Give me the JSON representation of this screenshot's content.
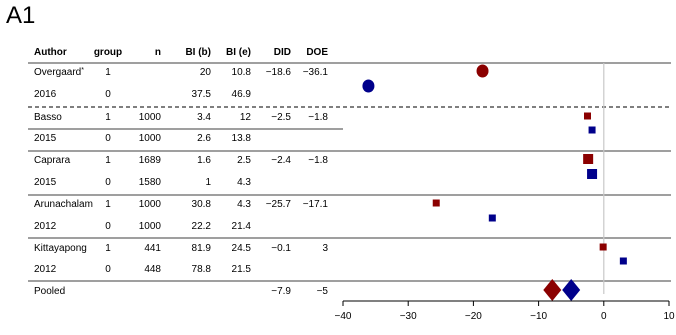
{
  "panel_label": "A1",
  "colors": {
    "red": "#8b0000",
    "blue": "#00008b",
    "rule": "#666666",
    "zero_line": "#c8c8c8"
  },
  "chart_data": {
    "type": "forest-plot",
    "columns": [
      "Author",
      "group",
      "n",
      "BI (b)",
      "BI (e)",
      "DID",
      "DOE"
    ],
    "rows": [
      {
        "author": "Overgaard",
        "author_mark": "*",
        "group": "1",
        "n": "",
        "bi_b": "20",
        "bi_e": "10.8",
        "did": "−18.6",
        "doe": "−36.1"
      },
      {
        "author": "2016",
        "author_mark": "",
        "group": "0",
        "n": "",
        "bi_b": "37.5",
        "bi_e": "46.9",
        "did": "",
        "doe": ""
      },
      {
        "author": "Basso",
        "author_mark": "",
        "group": "1",
        "n": "1000",
        "bi_b": "3.4",
        "bi_e": "12",
        "did": "−2.5",
        "doe": "−1.8"
      },
      {
        "author": "2015",
        "author_mark": "",
        "group": "0",
        "n": "1000",
        "bi_b": "2.6",
        "bi_e": "13.8",
        "did": "",
        "doe": ""
      },
      {
        "author": "Caprara",
        "author_mark": "",
        "group": "1",
        "n": "1689",
        "bi_b": "1.6",
        "bi_e": "2.5",
        "did": "−2.4",
        "doe": "−1.8"
      },
      {
        "author": "2015",
        "author_mark": "",
        "group": "0",
        "n": "1580",
        "bi_b": "1",
        "bi_e": "4.3",
        "did": "",
        "doe": ""
      },
      {
        "author": "Arunachalam",
        "author_mark": "",
        "group": "1",
        "n": "1000",
        "bi_b": "30.8",
        "bi_e": "4.3",
        "did": "−25.7",
        "doe": "−17.1"
      },
      {
        "author": "2012",
        "author_mark": "",
        "group": "0",
        "n": "1000",
        "bi_b": "22.2",
        "bi_e": "21.4",
        "did": "",
        "doe": ""
      },
      {
        "author": "Kittayapong",
        "author_mark": "",
        "group": "1",
        "n": "441",
        "bi_b": "81.9",
        "bi_e": "24.5",
        "did": "−0.1",
        "doe": "3"
      },
      {
        "author": "2012",
        "author_mark": "",
        "group": "0",
        "n": "448",
        "bi_b": "78.8",
        "bi_e": "21.5",
        "did": "",
        "doe": ""
      },
      {
        "author": "Pooled",
        "author_mark": "",
        "group": "",
        "n": "",
        "bi_b": "",
        "bi_e": "",
        "did": "−7.9",
        "doe": "−5",
        "pooled": true
      }
    ],
    "studies": [
      {
        "name": "Overgaard",
        "did": -18.6,
        "doe": -36.1,
        "marker": "circle"
      },
      {
        "name": "Basso",
        "did": -2.5,
        "doe": -1.8,
        "marker": "square"
      },
      {
        "name": "Caprara",
        "did": -2.4,
        "doe": -1.8,
        "marker": "square"
      },
      {
        "name": "Arunachalam",
        "did": -25.7,
        "doe": -17.1,
        "marker": "square"
      },
      {
        "name": "Kittayapong",
        "did": -0.1,
        "doe": 3,
        "marker": "square"
      }
    ],
    "pooled": {
      "did": -7.9,
      "doe": -5,
      "marker": "diamond"
    },
    "x_axis": {
      "range": [
        -40,
        10
      ],
      "ticks": [
        -40,
        -30,
        -20,
        -10,
        0,
        10
      ],
      "tick_labels": [
        "−40",
        "−30",
        "−20",
        "−10",
        "0",
        "10"
      ]
    },
    "reference_line": 0,
    "series": [
      {
        "key": "did",
        "color": "red"
      },
      {
        "key": "doe",
        "color": "blue"
      }
    ]
  }
}
